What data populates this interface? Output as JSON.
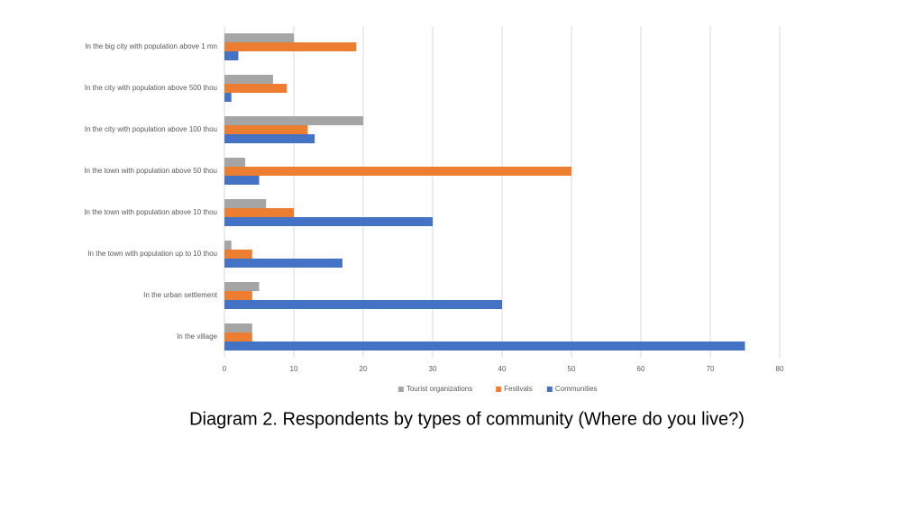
{
  "chart_data": {
    "type": "bar",
    "orientation": "horizontal",
    "title": "Diagram 2. Respondents by types of community (Where do you live?)",
    "categories": [
      "In the big city with population above 1 mn",
      "In the city with population above 500 thou",
      "In the city with population above 100 thou",
      "In the town with population above 50 thou",
      "In the town with population above 10 thou",
      "In the town with population up to 10 thou",
      "In the urban settlement",
      "In the village"
    ],
    "series": [
      {
        "name": "Tourist organizations",
        "color": "#a5a5a5",
        "values": [
          10,
          7,
          20,
          3,
          6,
          1,
          5,
          4
        ]
      },
      {
        "name": "Festivals",
        "color": "#ed7d31",
        "values": [
          19,
          9,
          12,
          50,
          10,
          4,
          4,
          4
        ]
      },
      {
        "name": "Communities",
        "color": "#4472c4",
        "values": [
          2,
          1,
          13,
          5,
          30,
          17,
          40,
          75
        ]
      }
    ],
    "xlim": [
      0,
      80
    ],
    "xticks": [
      0,
      10,
      20,
      30,
      40,
      50,
      60,
      70,
      80
    ],
    "grid": true,
    "legend": "bottom"
  }
}
